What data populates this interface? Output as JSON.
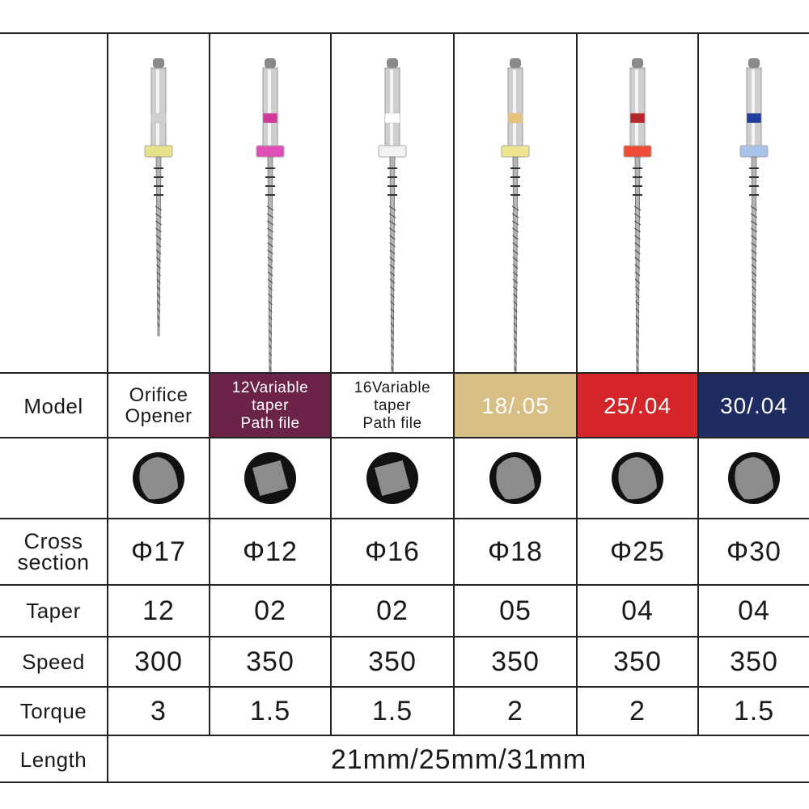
{
  "row_labels": {
    "model": "Model",
    "cross_section": "Cross\nsection",
    "taper": "Taper",
    "speed": "Speed",
    "torque": "Torque",
    "length": "Length"
  },
  "files": [
    {
      "model": "Orifice\nOpener",
      "model_bg": "#ffffff",
      "model_color": "#1a1a1a",
      "ring_color": "#e8e28a",
      "band_color": "#cfd0cf",
      "cross_shape": "triangle",
      "diameter": "Φ17",
      "taper": "12",
      "speed": "300",
      "torque": "3"
    },
    {
      "model": "12Variable\ntaper\nPath file",
      "model_bg": "#6b2447",
      "model_color": "#ffffff",
      "ring_color": "#e04fb8",
      "band_color": "#d23a9a",
      "cross_shape": "square",
      "diameter": "Φ12",
      "taper": "02",
      "speed": "350",
      "torque": "1.5"
    },
    {
      "model": "16Variable\ntaper\nPath file",
      "model_bg": "#ffffff",
      "model_color": "#1a1a1a",
      "ring_color": "#f2f2f2",
      "band_color": "#ffffff",
      "cross_shape": "square",
      "diameter": "Φ16",
      "taper": "02",
      "speed": "350",
      "torque": "1.5"
    },
    {
      "model": "18/.05",
      "model_bg": "#d8bf86",
      "model_color": "#ffffff",
      "ring_color": "#efe490",
      "band_color": "#e8c27a",
      "cross_shape": "triangle",
      "diameter": "Φ18",
      "taper": "05",
      "speed": "350",
      "torque": "2"
    },
    {
      "model": "25/.04",
      "model_bg": "#d3252a",
      "model_color": "#ffffff",
      "ring_color": "#f04b35",
      "band_color": "#b8282a",
      "cross_shape": "triangle",
      "diameter": "Φ25",
      "taper": "04",
      "speed": "350",
      "torque": "2"
    },
    {
      "model": "30/.04",
      "model_bg": "#1e2c62",
      "model_color": "#ffffff",
      "ring_color": "#a9c4ea",
      "band_color": "#1f3f9a",
      "cross_shape": "triangle",
      "diameter": "Φ30",
      "taper": "04",
      "speed": "350",
      "torque": "1.5"
    }
  ],
  "length_value": "21mm/25mm/31mm"
}
